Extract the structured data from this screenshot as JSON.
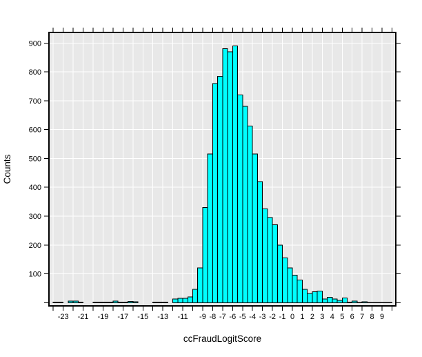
{
  "chart_data": {
    "type": "bar",
    "subtype": "histogram",
    "title": "",
    "xlabel": "ccFraudLogitScore",
    "ylabel": "Counts",
    "bin_start": -24,
    "bin_width": 0.5,
    "counts": [
      2,
      2,
      0,
      6,
      5,
      2,
      0,
      0,
      2,
      2,
      2,
      2,
      5,
      2,
      2,
      4,
      3,
      0,
      0,
      0,
      2,
      2,
      2,
      0,
      13,
      15,
      15,
      20,
      46,
      120,
      330,
      515,
      760,
      785,
      880,
      870,
      890,
      720,
      680,
      612,
      515,
      420,
      325,
      295,
      270,
      200,
      155,
      120,
      95,
      78,
      46,
      32,
      38,
      40,
      13,
      19,
      13,
      8,
      16,
      2,
      5,
      1,
      3,
      1,
      1,
      1,
      1,
      1
    ],
    "x_tick_min": -24,
    "x_tick_max": 10,
    "x_tick_step": 1,
    "x_labeled_ticks": [
      -23,
      -21,
      -19,
      -17,
      -15,
      -13,
      -11,
      -9,
      -8,
      -7,
      -6,
      -5,
      -4,
      -3,
      -2,
      -1,
      0,
      1,
      2,
      3,
      4,
      5,
      6,
      7,
      8,
      9
    ],
    "y_ticks": [
      0,
      100,
      200,
      300,
      400,
      500,
      600,
      700,
      800,
      900
    ],
    "y_tick_labels": [
      "100",
      "200",
      "300",
      "400",
      "500",
      "600",
      "700",
      "800",
      "900"
    ],
    "xlim": [
      -24.4,
      10.4
    ],
    "ylim": [
      -11,
      937
    ],
    "grid": "on",
    "legend": "none",
    "colors": {
      "bar_fill": "#00FFFF",
      "bar_outline": "#000000",
      "plot_background": "#E8E8E8",
      "gridline": "#FFFFFF",
      "frame": "#000000",
      "text": "#000000",
      "page_background": "#FFFFFF"
    }
  }
}
